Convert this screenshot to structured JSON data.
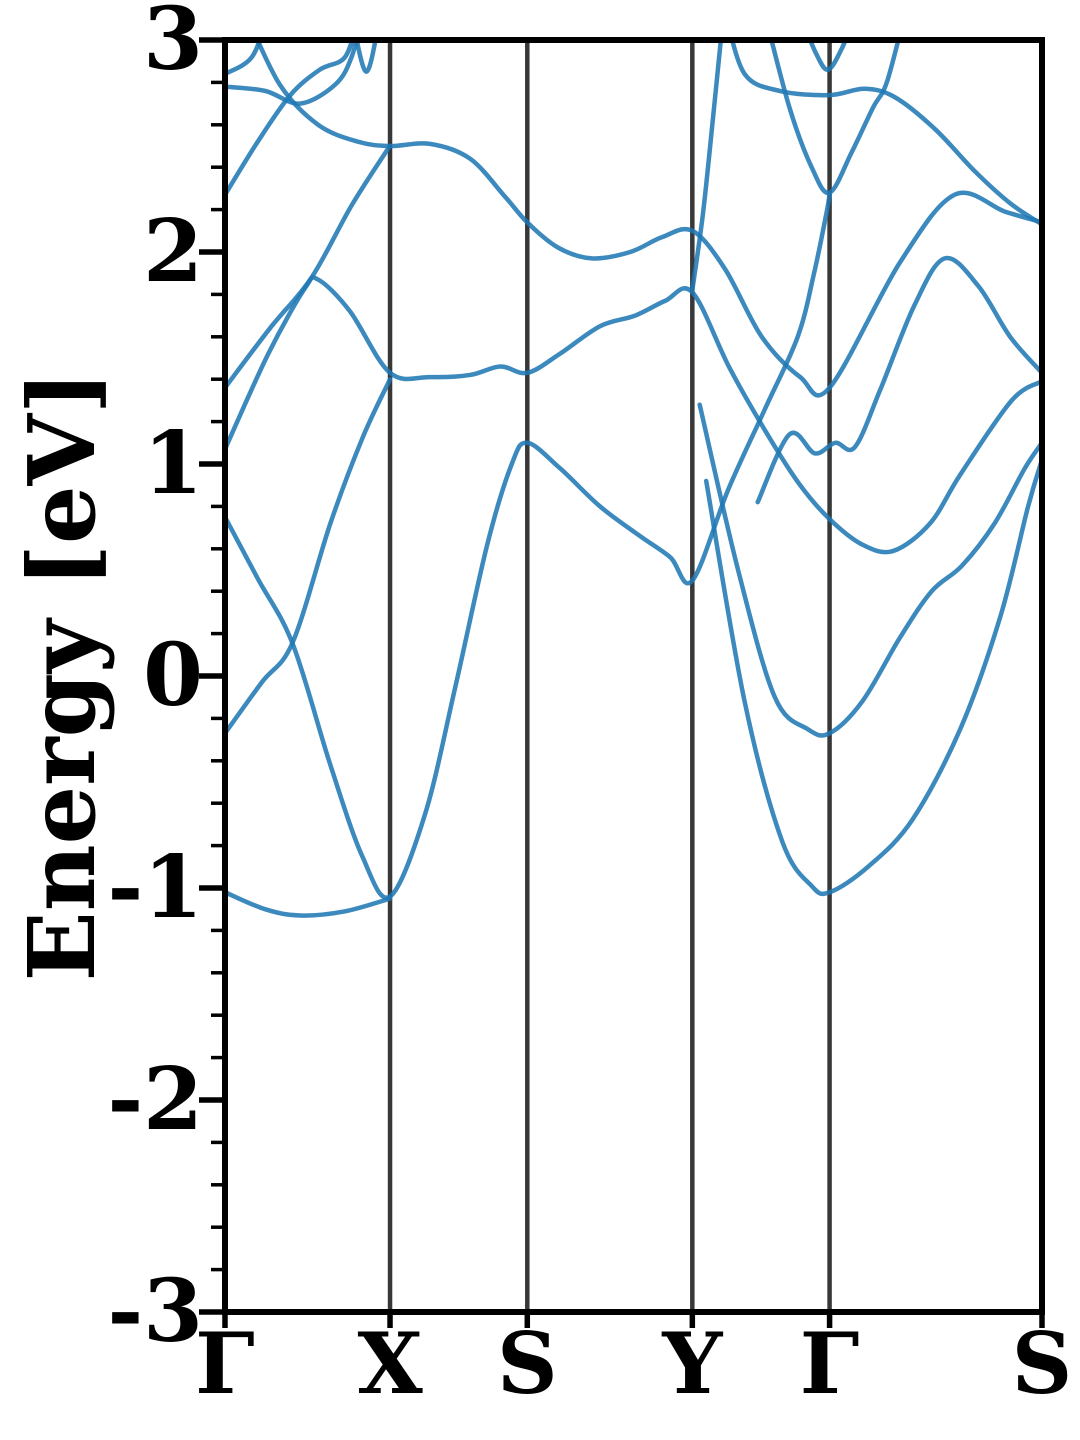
{
  "chart_data": {
    "type": "line",
    "title": "",
    "xlabel": "",
    "ylabel": "Energy [eV]",
    "ylim": [
      -3,
      3
    ],
    "ytick_values": [
      3,
      2,
      1,
      0,
      -1,
      -2,
      -3
    ],
    "ytick_labels": [
      "3",
      "2",
      "1",
      "0",
      "-1",
      "-2",
      "-3"
    ],
    "minor_tick_step": 0.2,
    "grid": false,
    "legend": "none",
    "kpoint_labels": [
      "Γ",
      "X",
      "S",
      "Y",
      "Γ",
      "S"
    ],
    "kpoint_x": [
      0,
      0.202,
      0.37,
      0.572,
      0.74,
      1.0
    ],
    "band_color": "#1f77b4",
    "band_opacity": 0.87,
    "band_width": 4.5,
    "vline_color": "#383838",
    "frame_color": "#000000",
    "series": [
      {
        "name": "gx-top-riser",
        "points": [
          [
            0,
            2.84
          ],
          [
            0.033,
            2.92
          ],
          [
            0.053,
            3.12
          ]
        ]
      },
      {
        "name": "gx-flat-top",
        "points": [
          [
            0,
            2.78
          ],
          [
            0.049,
            2.76
          ],
          [
            0.092,
            2.7
          ],
          [
            0.135,
            2.79
          ],
          [
            0.155,
            2.92
          ],
          [
            0.168,
            3.12
          ]
        ]
      },
      {
        "name": "x-top-v",
        "points": [
          [
            0.155,
            3.12
          ],
          [
            0.173,
            2.85
          ],
          [
            0.19,
            3.12
          ]
        ]
      },
      {
        "name": "band-upper-main",
        "points": [
          [
            0.026,
            3.12
          ],
          [
            0.067,
            2.79
          ],
          [
            0.114,
            2.6
          ],
          [
            0.163,
            2.52
          ],
          [
            0.202,
            2.5
          ],
          [
            0.251,
            2.51
          ],
          [
            0.3,
            2.44
          ],
          [
            0.343,
            2.26
          ],
          [
            0.37,
            2.14
          ],
          [
            0.408,
            2.02
          ],
          [
            0.449,
            1.97
          ],
          [
            0.496,
            2.0
          ],
          [
            0.535,
            2.07
          ],
          [
            0.572,
            2.1
          ],
          [
            0.612,
            1.92
          ],
          [
            0.657,
            1.6
          ],
          [
            0.704,
            1.41
          ],
          [
            0.74,
            1.36
          ],
          [
            0.826,
            1.95
          ],
          [
            0.893,
            2.27
          ],
          [
            0.955,
            2.19
          ],
          [
            1,
            2.14
          ]
        ]
      },
      {
        "name": "gx-riser-2",
        "points": [
          [
            0,
            2.27
          ],
          [
            0.04,
            2.52
          ],
          [
            0.08,
            2.74
          ],
          [
            0.116,
            2.86
          ],
          [
            0.147,
            2.92
          ],
          [
            0.163,
            3.1
          ]
        ]
      },
      {
        "name": "gx-riser-3",
        "points": [
          [
            0,
            1.36
          ],
          [
            0.055,
            1.64
          ],
          [
            0.106,
            1.88
          ],
          [
            0.155,
            2.22
          ],
          [
            0.2,
            2.49
          ]
        ]
      },
      {
        "name": "band-mid-main",
        "points": [
          [
            0,
            1.07
          ],
          [
            0.053,
            1.52
          ],
          [
            0.098,
            1.83
          ],
          [
            0.114,
            1.87
          ],
          [
            0.153,
            1.72
          ],
          [
            0.202,
            1.43
          ],
          [
            0.251,
            1.41
          ],
          [
            0.3,
            1.42
          ],
          [
            0.337,
            1.46
          ],
          [
            0.37,
            1.43
          ],
          [
            0.41,
            1.52
          ],
          [
            0.459,
            1.65
          ],
          [
            0.502,
            1.7
          ],
          [
            0.539,
            1.77
          ],
          [
            0.572,
            1.81
          ],
          [
            0.618,
            1.45
          ],
          [
            0.667,
            1.12
          ],
          [
            0.704,
            0.9
          ],
          [
            0.74,
            0.74
          ],
          [
            0.78,
            0.62
          ],
          [
            0.818,
            0.59
          ],
          [
            0.863,
            0.72
          ],
          [
            0.9,
            0.95
          ],
          [
            0.963,
            1.3
          ],
          [
            1,
            1.39
          ]
        ]
      },
      {
        "name": "y-steep-riser",
        "points": [
          [
            0.572,
            1.82
          ],
          [
            0.585,
            2.18
          ],
          [
            0.597,
            2.62
          ],
          [
            0.61,
            3.12
          ]
        ]
      },
      {
        "name": "g2-narrow-top-v",
        "points": [
          [
            0.704,
            3.12
          ],
          [
            0.723,
            2.94
          ],
          [
            0.738,
            2.86
          ],
          [
            0.755,
            2.96
          ],
          [
            0.772,
            3.12
          ]
        ]
      },
      {
        "name": "g2-big-v",
        "points": [
          [
            0.661,
            3.12
          ],
          [
            0.691,
            2.68
          ],
          [
            0.718,
            2.4
          ],
          [
            0.74,
            2.28
          ],
          [
            0.767,
            2.47
          ],
          [
            0.793,
            2.68
          ],
          [
            0.81,
            2.8
          ],
          [
            0.832,
            3.12
          ]
        ]
      },
      {
        "name": "band-lower-main",
        "points": [
          [
            0,
            0.75
          ],
          [
            0.04,
            0.46
          ],
          [
            0.083,
            0.15
          ],
          [
            0.129,
            -0.42
          ],
          [
            0.168,
            -0.85
          ],
          [
            0.202,
            -1.04
          ],
          [
            0.245,
            -0.65
          ],
          [
            0.282,
            -0.05
          ],
          [
            0.321,
            0.62
          ],
          [
            0.351,
            1.0
          ],
          [
            0.37,
            1.1
          ],
          [
            0.41,
            0.98
          ],
          [
            0.459,
            0.8
          ],
          [
            0.508,
            0.66
          ],
          [
            0.545,
            0.56
          ],
          [
            0.572,
            0.45
          ],
          [
            0.616,
            0.88
          ],
          [
            0.661,
            1.26
          ],
          [
            0.701,
            1.6
          ],
          [
            0.721,
            1.9
          ],
          [
            0.736,
            2.18
          ],
          [
            0.74,
            2.27
          ]
        ]
      },
      {
        "name": "gx-valley",
        "points": [
          [
            0,
            -1.02
          ],
          [
            0.049,
            -1.1
          ],
          [
            0.092,
            -1.13
          ],
          [
            0.147,
            -1.11
          ],
          [
            0.202,
            -1.05
          ]
        ]
      },
      {
        "name": "g2-shallow-v",
        "points": [
          [
            0.581,
            1.28
          ],
          [
            0.628,
            0.5
          ],
          [
            0.673,
            -0.1
          ],
          [
            0.713,
            -0.25
          ],
          [
            0.74,
            -0.27
          ],
          [
            0.78,
            -0.12
          ],
          [
            0.826,
            0.18
          ],
          [
            0.865,
            0.4
          ],
          [
            0.902,
            0.52
          ],
          [
            0.942,
            0.72
          ],
          [
            0.979,
            0.98
          ],
          [
            1,
            1.1
          ]
        ]
      },
      {
        "name": "g2-deep-v",
        "points": [
          [
            0.589,
            0.92
          ],
          [
            0.636,
            -0.12
          ],
          [
            0.682,
            -0.78
          ],
          [
            0.718,
            -0.99
          ],
          [
            0.74,
            -1.02
          ],
          [
            0.787,
            -0.9
          ],
          [
            0.841,
            -0.68
          ],
          [
            0.9,
            -0.25
          ],
          [
            0.949,
            0.28
          ],
          [
            0.983,
            0.8
          ],
          [
            1,
            1.02
          ]
        ]
      },
      {
        "name": "gx-low-riser",
        "points": [
          [
            0,
            -0.27
          ],
          [
            0.045,
            -0.03
          ],
          [
            0.083,
            0.16
          ],
          [
            0.129,
            0.72
          ],
          [
            0.168,
            1.12
          ],
          [
            0.202,
            1.4
          ]
        ]
      },
      {
        "name": "g2-flat-descender",
        "points": [
          [
            0.613,
            3.12
          ],
          [
            0.636,
            2.84
          ],
          [
            0.679,
            2.76
          ],
          [
            0.74,
            2.74
          ],
          [
            0.783,
            2.77
          ],
          [
            0.82,
            2.73
          ],
          [
            0.869,
            2.58
          ],
          [
            0.918,
            2.38
          ],
          [
            0.961,
            2.23
          ],
          [
            1,
            2.13
          ]
        ]
      },
      {
        "name": "g2s-hump",
        "points": [
          [
            0.652,
            0.82
          ],
          [
            0.691,
            1.14
          ],
          [
            0.722,
            1.05
          ],
          [
            0.747,
            1.1
          ],
          [
            0.771,
            1.08
          ],
          [
            0.802,
            1.35
          ],
          [
            0.844,
            1.75
          ],
          [
            0.881,
            1.97
          ],
          [
            0.922,
            1.84
          ],
          [
            0.961,
            1.6
          ],
          [
            1,
            1.43
          ]
        ]
      }
    ]
  }
}
